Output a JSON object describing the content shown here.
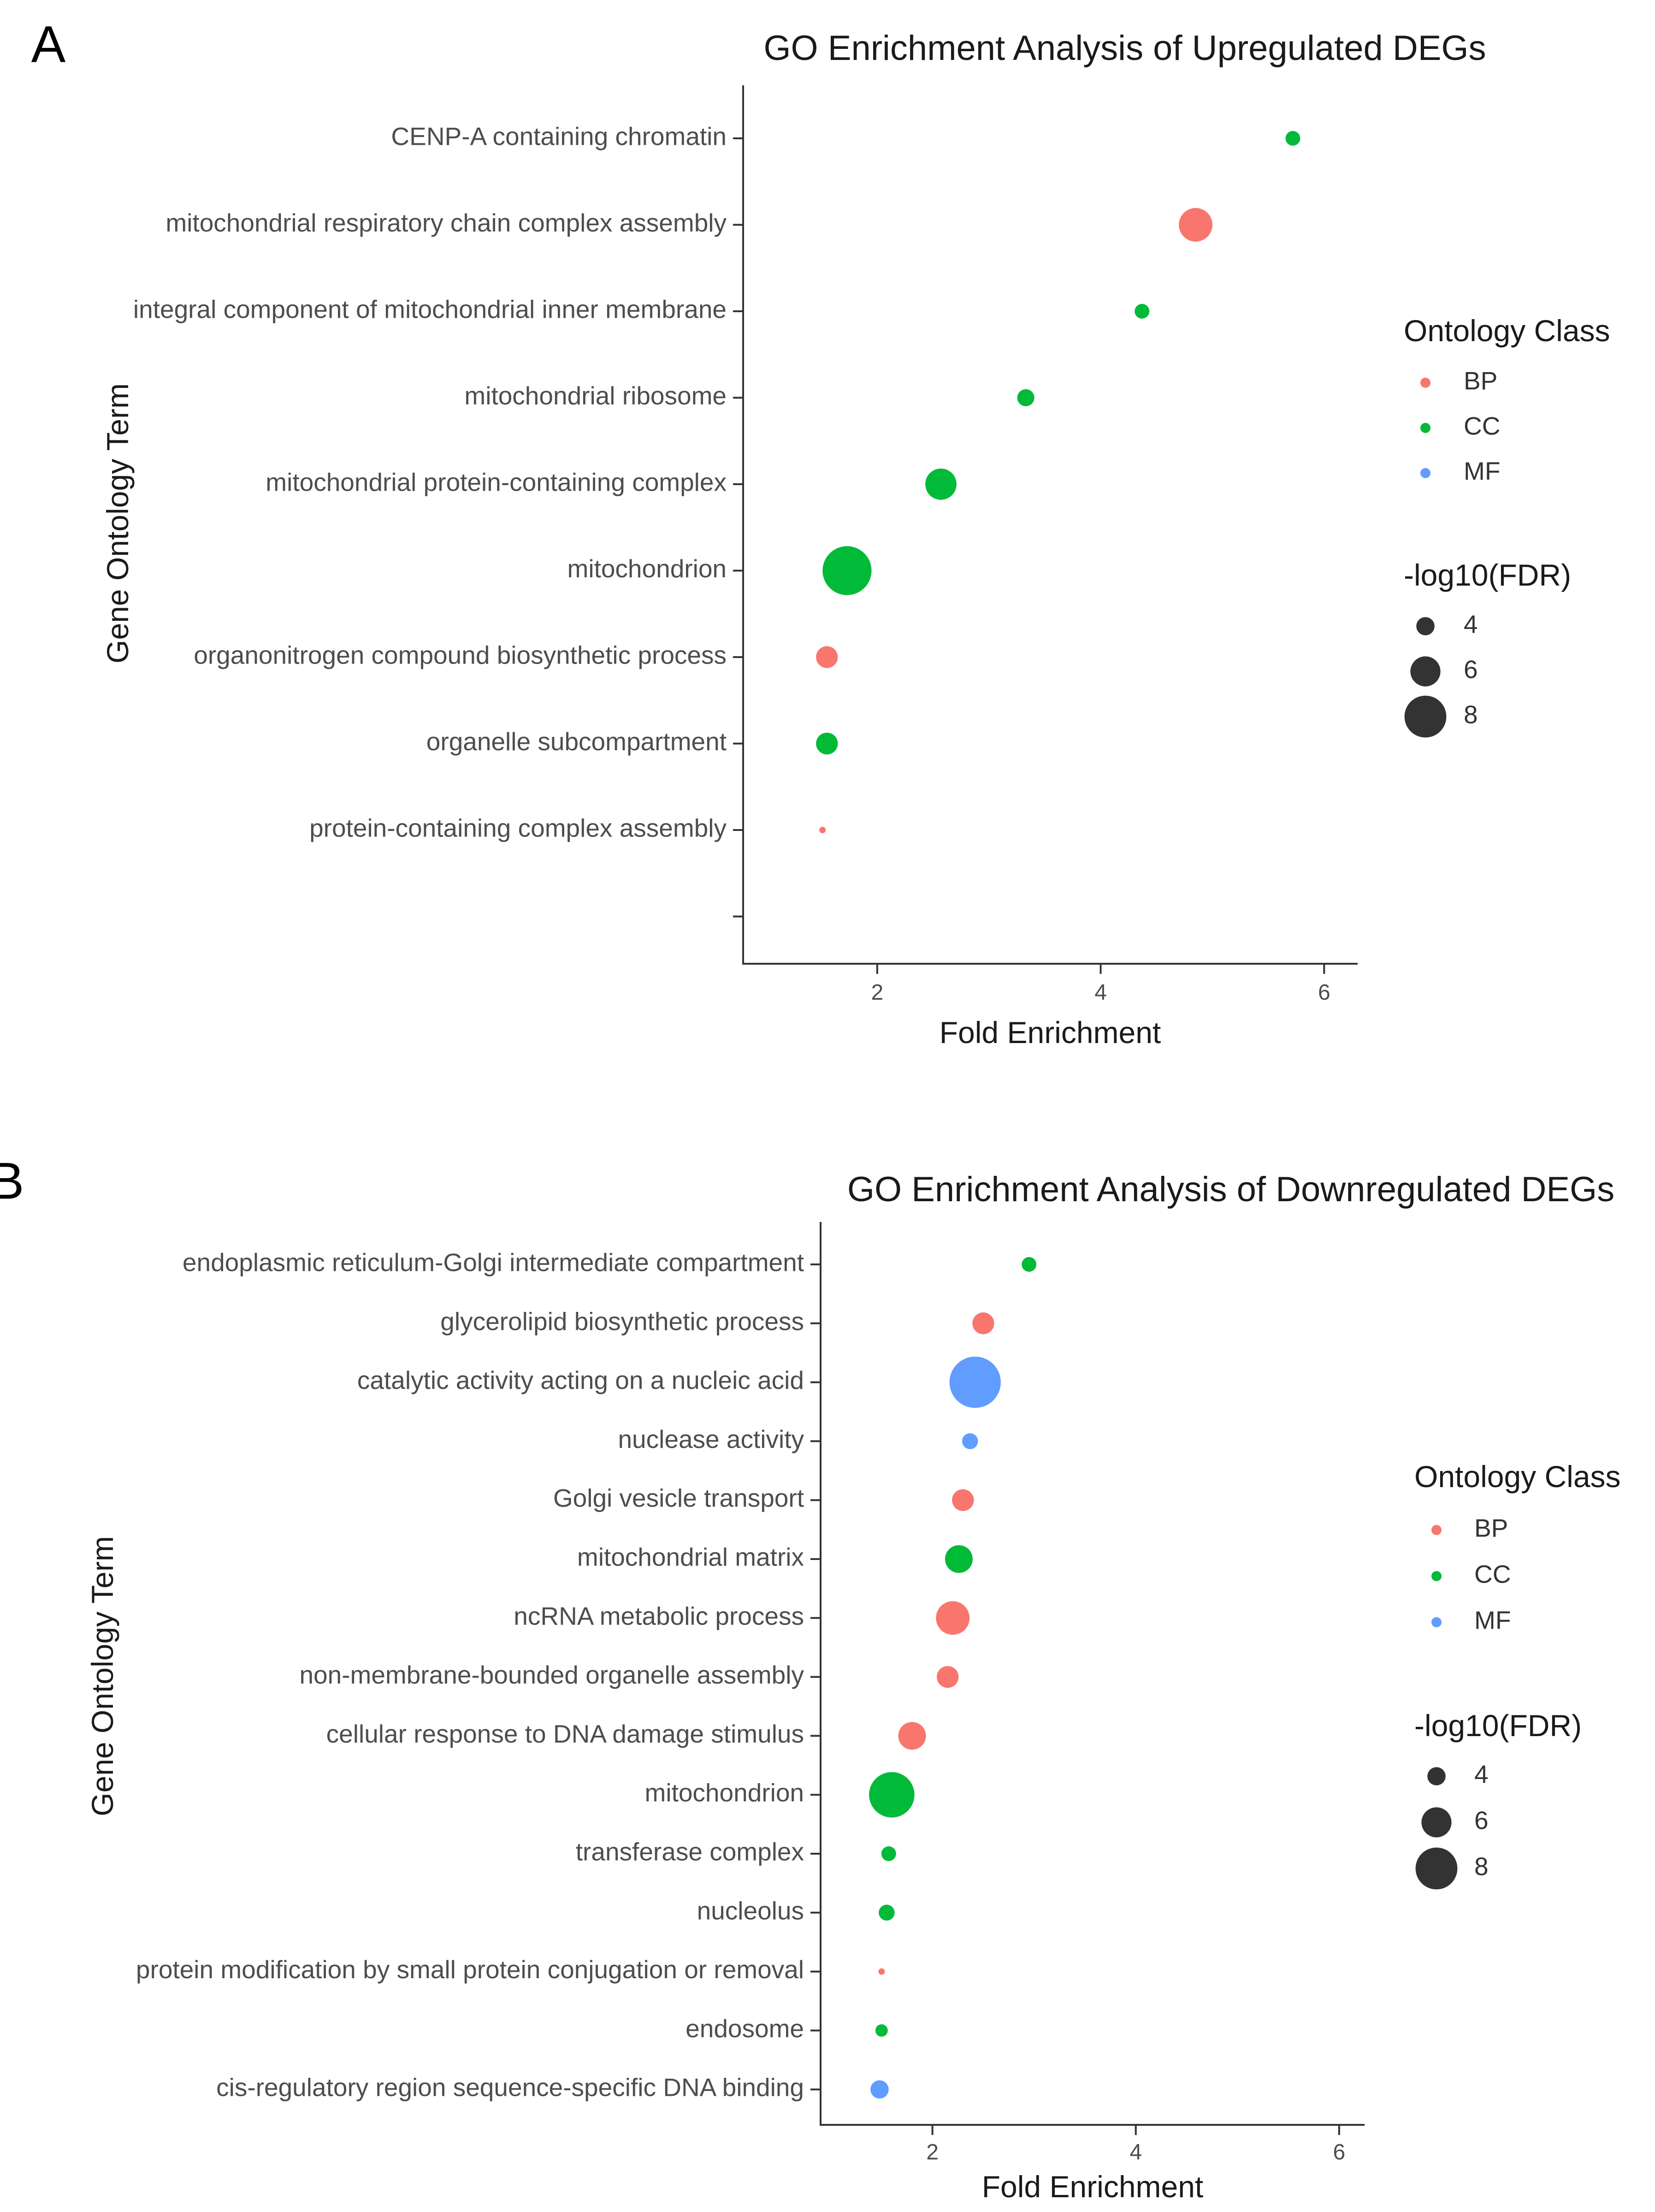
{
  "colors": {
    "BP": "#F8766D",
    "CC": "#00BA38",
    "MF": "#619CFF",
    "size_key": "#333333"
  },
  "chart_data": [
    {
      "panel": "A",
      "type": "scatter",
      "title": "GO Enrichment Analysis of Upregulated DEGs",
      "xlabel": "Fold Enrichment",
      "ylabel": "Gene Ontology Term",
      "xlim": [
        0.8,
        6.3
      ],
      "xticks": [
        2,
        4,
        6
      ],
      "extra_empty_rows": 1,
      "legend_color_title": "Ontology Class",
      "legend_size_title": "-log10(FDR)",
      "legend_classes": [
        "BP",
        "CC",
        "MF"
      ],
      "legend_sizes": [
        4,
        6,
        8
      ],
      "points": [
        {
          "term": "CENP-A containing chromatin",
          "x": 5.72,
          "class": "CC",
          "size": 3.4
        },
        {
          "term": "mitochondrial respiratory chain complex assembly",
          "x": 4.85,
          "class": "BP",
          "size": 6.6
        },
        {
          "term": "integral component of mitochondrial inner membrane",
          "x": 4.37,
          "class": "CC",
          "size": 3.4
        },
        {
          "term": "mitochondrial ribosome",
          "x": 3.33,
          "class": "CC",
          "size": 3.8
        },
        {
          "term": "mitochondrial protein-containing complex",
          "x": 2.57,
          "class": "CC",
          "size": 6.2
        },
        {
          "term": "mitochondrion",
          "x": 1.73,
          "class": "CC",
          "size": 9.2
        },
        {
          "term": "organonitrogen compound biosynthetic process",
          "x": 1.55,
          "class": "BP",
          "size": 4.6
        },
        {
          "term": "organelle subcompartment",
          "x": 1.55,
          "class": "CC",
          "size": 4.6
        },
        {
          "term": "protein-containing complex assembly",
          "x": 1.51,
          "class": "BP",
          "size": 2.0
        }
      ]
    },
    {
      "panel": "B",
      "type": "scatter",
      "title": "GO Enrichment Analysis of Downregulated DEGs",
      "xlabel": "Fold Enrichment",
      "ylabel": "Gene Ontology Term",
      "xlim": [
        0.9,
        6.25
      ],
      "xticks": [
        2,
        4,
        6
      ],
      "extra_empty_rows": 0,
      "legend_color_title": "Ontology Class",
      "legend_size_title": "-log10(FDR)",
      "legend_classes": [
        "BP",
        "CC",
        "MF"
      ],
      "legend_sizes": [
        4,
        6,
        8
      ],
      "points": [
        {
          "term": "endoplasmic reticulum-Golgi intermediate compartment",
          "x": 2.95,
          "class": "CC",
          "size": 3.4
        },
        {
          "term": "glycerolipid biosynthetic process",
          "x": 2.5,
          "class": "BP",
          "size": 4.6
        },
        {
          "term": "catalytic activity acting on a nucleic acid",
          "x": 2.42,
          "class": "MF",
          "size": 9.6
        },
        {
          "term": "nuclease activity",
          "x": 2.37,
          "class": "MF",
          "size": 3.6
        },
        {
          "term": "Golgi vesicle transport",
          "x": 2.3,
          "class": "BP",
          "size": 4.6
        },
        {
          "term": "mitochondrial matrix",
          "x": 2.26,
          "class": "CC",
          "size": 5.6
        },
        {
          "term": "ncRNA metabolic process",
          "x": 2.2,
          "class": "BP",
          "size": 6.6
        },
        {
          "term": "non-membrane-bounded organelle assembly",
          "x": 2.15,
          "class": "BP",
          "size": 4.6
        },
        {
          "term": "cellular response to DNA damage stimulus",
          "x": 1.8,
          "class": "BP",
          "size": 5.6
        },
        {
          "term": "mitochondrion",
          "x": 1.6,
          "class": "CC",
          "size": 8.6
        },
        {
          "term": "transferase complex",
          "x": 1.57,
          "class": "CC",
          "size": 3.4
        },
        {
          "term": "nucleolus",
          "x": 1.55,
          "class": "CC",
          "size": 3.6
        },
        {
          "term": "protein modification by small protein conjugation or removal",
          "x": 1.5,
          "class": "BP",
          "size": 2.0
        },
        {
          "term": "endosome",
          "x": 1.5,
          "class": "CC",
          "size": 3.0
        },
        {
          "term": "cis-regulatory region sequence-specific DNA binding",
          "x": 1.48,
          "class": "MF",
          "size": 4.0
        }
      ]
    }
  ]
}
